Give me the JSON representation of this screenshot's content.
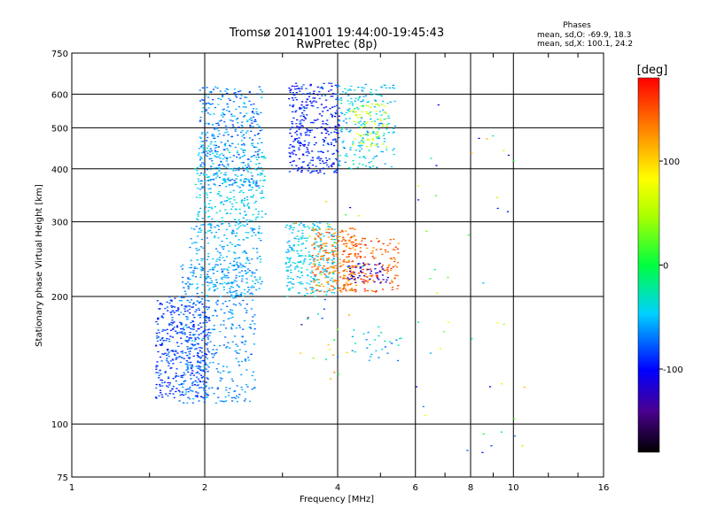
{
  "header": {
    "title_line1": "Tromsø 20141001 19:44:00-19:45:43",
    "title_line2": "RwPretec (8p)"
  },
  "stats": {
    "heading": "Phases",
    "line_o": "mean, sd,O: -69.9, 18.3",
    "line_x": "mean, sd,X: 100.1, 24.2"
  },
  "colorbar": {
    "unit": "[deg]",
    "range": [
      -180,
      180
    ],
    "ticks": [
      100,
      0,
      -100
    ],
    "tick_labels": [
      "100",
      "0",
      "-100"
    ]
  },
  "chart_data": {
    "type": "scatter",
    "title": "Tromsø 20141001 19:44:00-19:45:43",
    "subtitle": "RwPretec (8p)",
    "xlabel": "Frequency [MHz]",
    "ylabel": "Stationary phase Virtual Height [km]",
    "xscale": "log",
    "yscale": "log",
    "xlim": [
      1,
      16
    ],
    "ylim": [
      75,
      750
    ],
    "grid": true,
    "x_major_ticks": [
      2,
      4,
      6,
      8,
      10
    ],
    "x_tick_labels": [
      "1",
      "2",
      "4",
      "6",
      "8",
      "10",
      "16"
    ],
    "x_tick_values": [
      1,
      2,
      4,
      6,
      8,
      10,
      16
    ],
    "y_tick_values": [
      750,
      600,
      500,
      400,
      300,
      200,
      100,
      75
    ],
    "y_tick_labels": [
      "750",
      "600",
      "500",
      "400",
      "300",
      "200",
      "100",
      "75"
    ],
    "y_major_ticks": [
      600,
      500,
      400,
      300,
      200,
      100
    ],
    "clusters": [
      {
        "f": [
          1.55,
          2.05
        ],
        "h": [
          115,
          200
        ],
        "phase": [
          -100,
          -70
        ],
        "n": 420
      },
      {
        "f": [
          1.75,
          2.6
        ],
        "h": [
          112,
          240
        ],
        "phase": [
          -80,
          -50
        ],
        "n": 380
      },
      {
        "f": [
          1.85,
          2.7
        ],
        "h": [
          200,
          300
        ],
        "phase": [
          -70,
          -40
        ],
        "n": 260
      },
      {
        "f": [
          1.9,
          2.75
        ],
        "h": [
          300,
          460
        ],
        "phase": [
          -60,
          -30
        ],
        "n": 260
      },
      {
        "f": [
          1.95,
          2.7
        ],
        "h": [
          360,
          630
        ],
        "phase": [
          -90,
          -45
        ],
        "n": 360
      },
      {
        "f": [
          3.05,
          3.95
        ],
        "h": [
          200,
          300
        ],
        "phase": [
          -60,
          -30
        ],
        "n": 260
      },
      {
        "f": [
          3.1,
          4.05
        ],
        "h": [
          390,
          640
        ],
        "phase": [
          -110,
          -75
        ],
        "n": 340
      },
      {
        "f": [
          4.0,
          5.4
        ],
        "h": [
          400,
          640
        ],
        "phase": [
          -70,
          -20
        ],
        "n": 200
      },
      {
        "f": [
          4.3,
          5.2
        ],
        "h": [
          450,
          570
        ],
        "phase": [
          30,
          80
        ],
        "n": 70
      },
      {
        "f": [
          3.5,
          4.4
        ],
        "h": [
          205,
          290
        ],
        "phase": [
          110,
          160
        ],
        "n": 220
      },
      {
        "f": [
          4.1,
          5.5
        ],
        "h": [
          205,
          275
        ],
        "phase": [
          120,
          175
        ],
        "n": 170
      },
      {
        "f": [
          4.2,
          5.2
        ],
        "h": [
          215,
          240
        ],
        "phase": [
          -130,
          -110
        ],
        "n": 50
      },
      {
        "f": [
          4.3,
          5.6
        ],
        "h": [
          140,
          170
        ],
        "phase": [
          -80,
          -20
        ],
        "n": 30
      },
      {
        "f": [
          6.0,
          10.8
        ],
        "h": [
          85,
          620
        ],
        "phase": [
          -120,
          120
        ],
        "n": 45
      },
      {
        "f": [
          3.2,
          4.6
        ],
        "h": [
          125,
          340
        ],
        "phase": [
          -140,
          140
        ],
        "n": 40
      }
    ]
  }
}
